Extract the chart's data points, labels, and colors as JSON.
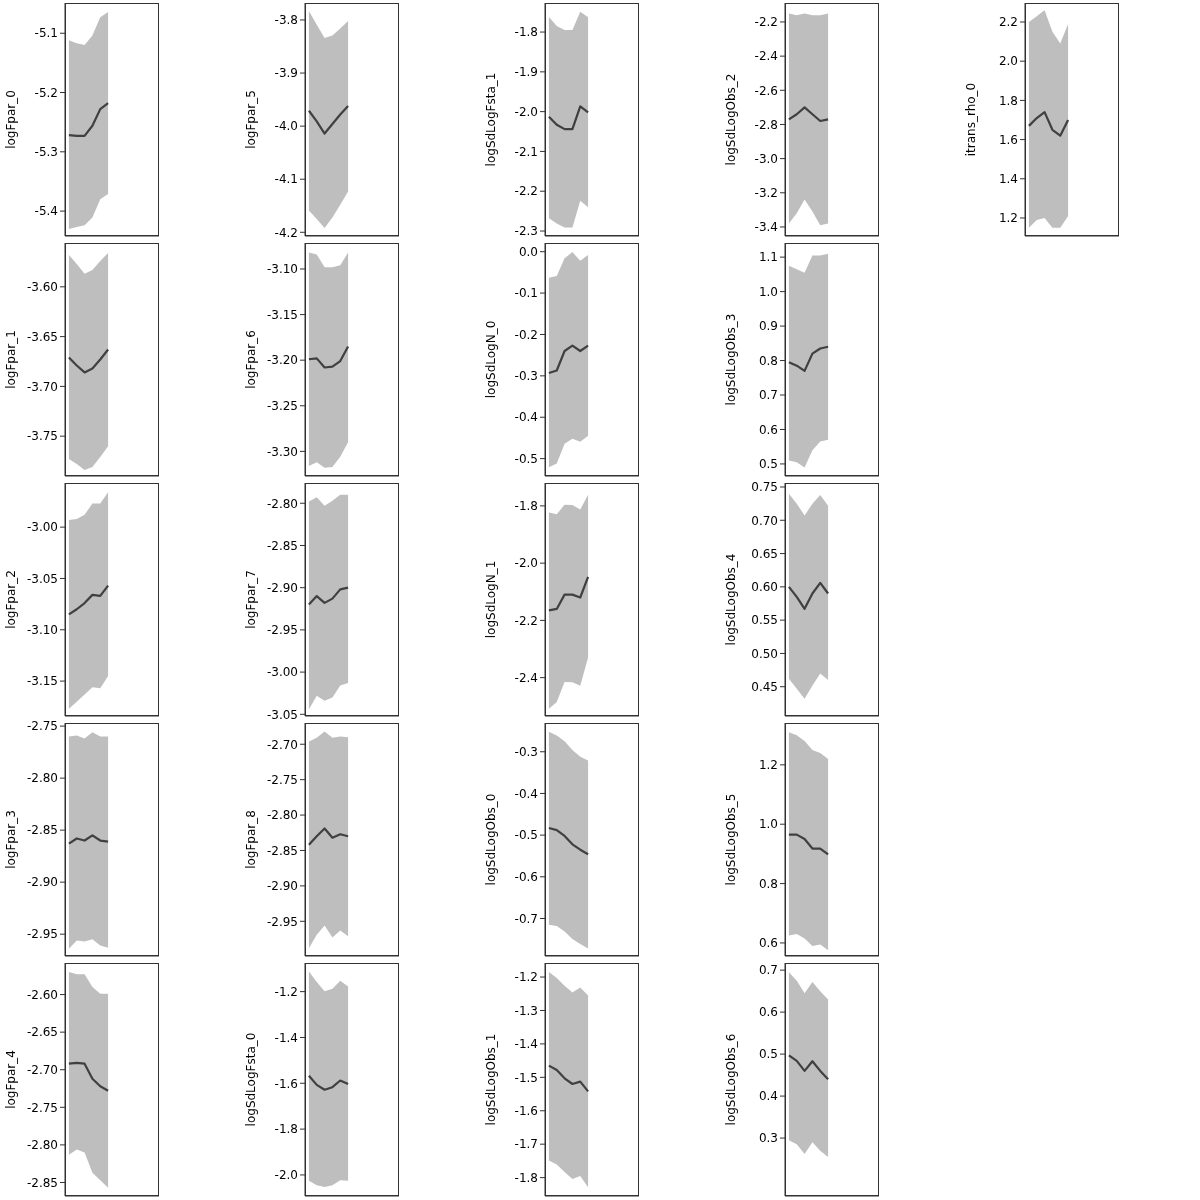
{
  "chart_data": [
    {
      "type": "line",
      "ylabel": "logFpar_0",
      "categories": [
        null,
        null,
        null,
        null,
        null,
        null,
        null,
        null,
        null,
        null,
        null,
        null
      ],
      "tick_labels": "y",
      "ylim": [
        -5.442,
        -5.049
      ],
      "yticks": [
        -5.4,
        -5.3,
        -5.2,
        -5.1
      ],
      "series": [
        {
          "color": "#404040",
          "values": [
            -5.272,
            -5.273,
            -5.273,
            -5.256,
            -5.228,
            -5.218,
            null,
            null,
            null,
            null,
            null,
            null
          ],
          "lower": [
            -5.43,
            -5.427,
            -5.424,
            -5.411,
            -5.38,
            -5.371,
            null,
            null,
            null,
            null,
            null,
            null
          ],
          "upper": [
            -5.112,
            -5.117,
            -5.12,
            -5.104,
            -5.073,
            -5.064,
            null,
            null,
            null,
            null,
            null,
            null
          ]
        }
      ]
    },
    {
      "type": "line",
      "ylabel": "logFpar_1",
      "categories": [
        null,
        null,
        null,
        null,
        null,
        null,
        null,
        null,
        null,
        null,
        null,
        null
      ],
      "tick_labels": "y",
      "ylim": [
        -3.79,
        -3.556
      ],
      "yticks": [
        -3.75,
        {
          "value": -3.7,
          "label": "-3.70"
        },
        -3.65,
        {
          "value": -3.6,
          "label": "-3.60"
        }
      ],
      "series": [
        {
          "color": "#404040",
          "values": [
            -3.671,
            -3.679,
            -3.686,
            -3.682,
            -3.673,
            -3.663,
            null,
            null,
            null,
            null,
            null,
            null
          ],
          "lower": [
            -3.773,
            -3.778,
            -3.784,
            -3.781,
            -3.771,
            -3.76,
            null,
            null,
            null,
            null,
            null,
            null
          ],
          "upper": [
            -3.568,
            -3.577,
            -3.587,
            -3.583,
            -3.574,
            -3.566,
            null,
            null,
            null,
            null,
            null,
            null
          ]
        }
      ]
    },
    {
      "type": "line",
      "ylabel": "logFpar_2",
      "categories": [
        null,
        null,
        null,
        null,
        null,
        null,
        null,
        null,
        null,
        null,
        null,
        null
      ],
      "tick_labels": "y",
      "ylim": [
        -3.184,
        -2.957
      ],
      "yticks": [
        -3.15,
        {
          "value": -3.1,
          "label": "-3.10"
        },
        -3.05,
        {
          "value": -3,
          "label": "-3.00"
        }
      ],
      "series": [
        {
          "color": "#404040",
          "values": [
            -3.085,
            -3.08,
            -3.074,
            -3.066,
            -3.067,
            -3.057,
            null,
            null,
            null,
            null,
            null,
            null
          ],
          "lower": [
            -3.177,
            -3.17,
            -3.163,
            -3.156,
            -3.157,
            -3.145,
            null,
            null,
            null,
            null,
            null,
            null
          ],
          "upper": [
            -2.993,
            -2.992,
            -2.988,
            -2.977,
            -2.977,
            -2.966,
            null,
            null,
            null,
            null,
            null,
            null
          ]
        }
      ]
    },
    {
      "type": "line",
      "ylabel": "logFpar_3",
      "categories": [
        null,
        null,
        null,
        null,
        null,
        null,
        null,
        null,
        null,
        null,
        null,
        null
      ],
      "tick_labels": "y",
      "ylim": [
        -2.971,
        -2.747
      ],
      "yticks": [
        -2.95,
        {
          "value": -2.9,
          "label": "-2.90"
        },
        -2.85,
        {
          "value": -2.8,
          "label": "-2.80"
        },
        -2.75
      ],
      "series": [
        {
          "color": "#404040",
          "values": [
            -2.863,
            -2.858,
            -2.86,
            -2.855,
            -2.86,
            -2.861,
            null,
            null,
            null,
            null,
            null,
            null
          ],
          "lower": [
            -2.964,
            -2.956,
            -2.957,
            -2.955,
            -2.961,
            -2.963,
            null,
            null,
            null,
            null,
            null,
            null
          ],
          "upper": [
            -2.76,
            -2.759,
            -2.762,
            -2.756,
            -2.76,
            -2.76,
            null,
            null,
            null,
            null,
            null,
            null
          ]
        }
      ]
    },
    {
      "type": "line",
      "ylabel": "logFpar_4",
      "categories": [
        null,
        null,
        null,
        null,
        null,
        null,
        null,
        null,
        null,
        null,
        null,
        null
      ],
      "tick_labels": "y",
      "ylim": [
        -2.868,
        -2.558
      ],
      "yticks": [
        -2.85,
        {
          "value": -2.8,
          "label": "-2.80"
        },
        -2.75,
        {
          "value": -2.7,
          "label": "-2.70"
        },
        -2.65,
        {
          "value": -2.6,
          "label": "-2.60"
        }
      ],
      "series": [
        {
          "color": "#404040",
          "values": [
            -2.692,
            -2.691,
            -2.692,
            -2.712,
            -2.722,
            -2.728,
            null,
            null,
            null,
            null,
            null,
            null
          ],
          "lower": [
            -2.813,
            -2.806,
            -2.81,
            -2.837,
            -2.847,
            -2.857,
            null,
            null,
            null,
            null,
            null,
            null
          ],
          "upper": [
            -2.57,
            -2.573,
            -2.573,
            -2.59,
            -2.599,
            -2.599,
            null,
            null,
            null,
            null,
            null,
            null
          ]
        }
      ]
    },
    {
      "type": "line",
      "ylabel": "logFpar_5",
      "categories": [
        null,
        null,
        null,
        null,
        null,
        null,
        null,
        null,
        null,
        null,
        null,
        null
      ],
      "tick_labels": "y",
      "ylim": [
        -4.207,
        -3.768
      ],
      "yticks": [
        -4.2,
        -4.1,
        {
          "value": -4,
          "label": "-4.0"
        },
        -3.9,
        -3.8
      ],
      "series": [
        {
          "color": "#404040",
          "values": [
            -3.971,
            -3.991,
            -4.014,
            -3.996,
            -3.978,
            -3.962,
            null,
            null,
            null,
            null,
            null,
            null
          ],
          "lower": [
            -4.159,
            -4.175,
            -4.192,
            -4.172,
            -4.148,
            -4.123,
            null,
            null,
            null,
            null,
            null,
            null
          ],
          "upper": [
            -3.783,
            -3.809,
            -3.834,
            -3.829,
            -3.816,
            -3.802,
            null,
            null,
            null,
            null,
            null,
            null
          ]
        }
      ]
    },
    {
      "type": "line",
      "ylabel": "logFpar_6",
      "categories": [
        null,
        null,
        null,
        null,
        null,
        null,
        null,
        null,
        null,
        null,
        null,
        null
      ],
      "tick_labels": "y",
      "ylim": [
        -3.327,
        -3.0715
      ],
      "yticks": [
        {
          "value": -3.3,
          "label": "-3.30"
        },
        -3.25,
        {
          "value": -3.2,
          "label": "-3.20"
        },
        -3.15,
        {
          "value": -3.1,
          "label": "-3.10"
        }
      ],
      "series": [
        {
          "color": "#404040",
          "values": [
            -3.199,
            -3.198,
            -3.208,
            -3.207,
            -3.201,
            -3.185,
            null,
            null,
            null,
            null,
            null,
            null
          ],
          "lower": [
            -3.316,
            -3.312,
            -3.318,
            -3.317,
            -3.306,
            -3.29,
            null,
            null,
            null,
            null,
            null,
            null
          ],
          "upper": [
            -3.082,
            -3.084,
            -3.098,
            -3.098,
            -3.096,
            -3.082,
            null,
            null,
            null,
            null,
            null,
            null
          ]
        }
      ]
    },
    {
      "type": "line",
      "ylabel": "logFpar_7",
      "categories": [
        null,
        null,
        null,
        null,
        null,
        null,
        null,
        null,
        null,
        null,
        null,
        null
      ],
      "tick_labels": "y",
      "ylim": [
        -3.052,
        -2.776
      ],
      "yticks": [
        -3.05,
        {
          "value": -3,
          "label": "-3.00"
        },
        -2.95,
        {
          "value": -2.9,
          "label": "-2.90"
        },
        -2.85,
        {
          "value": -2.8,
          "label": "-2.80"
        }
      ],
      "series": [
        {
          "color": "#404040",
          "values": [
            -2.92,
            -2.91,
            -2.918,
            -2.913,
            -2.902,
            -2.9,
            null,
            null,
            null,
            null,
            null,
            null
          ],
          "lower": [
            -3.044,
            -3.028,
            -3.034,
            -3.03,
            -3.016,
            -3.013,
            null,
            null,
            null,
            null,
            null,
            null
          ],
          "upper": [
            -2.798,
            -2.793,
            -2.803,
            -2.797,
            -2.79,
            -2.79,
            null,
            null,
            null,
            null,
            null,
            null
          ]
        }
      ]
    },
    {
      "type": "line",
      "ylabel": "logFpar_8",
      "categories": [
        null,
        null,
        null,
        null,
        null,
        null,
        null,
        null,
        null,
        null,
        null,
        null
      ],
      "tick_labels": "y",
      "ylim": [
        -2.999,
        -2.67
      ],
      "yticks": [
        -2.95,
        {
          "value": -2.9,
          "label": "-2.90"
        },
        -2.85,
        {
          "value": -2.8,
          "label": "-2.80"
        },
        -2.75,
        {
          "value": -2.7,
          "label": "-2.70"
        }
      ],
      "series": [
        {
          "color": "#404040",
          "values": [
            -2.842,
            -2.83,
            -2.819,
            -2.832,
            -2.827,
            -2.83,
            null,
            null,
            null,
            null,
            null,
            null
          ],
          "lower": [
            -2.988,
            -2.969,
            -2.956,
            -2.973,
            -2.963,
            -2.971,
            null,
            null,
            null,
            null,
            null,
            null
          ],
          "upper": [
            -2.696,
            -2.691,
            -2.682,
            -2.691,
            -2.689,
            -2.69,
            null,
            null,
            null,
            null,
            null,
            null
          ]
        }
      ]
    },
    {
      "type": "line",
      "ylabel": "logSdLogFsta_0",
      "categories": [
        null,
        null,
        null,
        null,
        null,
        null,
        null,
        null,
        null,
        null,
        null,
        null
      ],
      "tick_labels": "y",
      "ylim": [
        -2.092,
        -1.075
      ],
      "yticks": [
        {
          "value": -2,
          "label": "-2.0"
        },
        -1.8,
        -1.6,
        -1.4,
        -1.2
      ],
      "series": [
        {
          "color": "#404040",
          "values": [
            -1.567,
            -1.607,
            -1.628,
            -1.617,
            -1.588,
            -1.603,
            null,
            null,
            null,
            null,
            null,
            null
          ],
          "lower": [
            -2.025,
            -2.045,
            -2.053,
            -2.045,
            -2.023,
            -2.025,
            null,
            null,
            null,
            null,
            null,
            null
          ],
          "upper": [
            -1.112,
            -1.158,
            -1.198,
            -1.187,
            -1.153,
            -1.178,
            null,
            null,
            null,
            null,
            null,
            null
          ]
        }
      ]
    },
    {
      "type": "line",
      "ylabel": "logSdLogFsta_1",
      "categories": [
        null,
        null,
        null,
        null,
        null,
        null,
        null,
        null,
        null,
        null,
        null,
        null
      ],
      "tick_labels": "y",
      "ylim": [
        -2.3125,
        -1.727
      ],
      "yticks": [
        -2.3,
        -2.2,
        -2.1,
        {
          "value": -2,
          "label": "-2.0"
        },
        -1.9,
        -1.8
      ],
      "series": [
        {
          "color": "#404040",
          "values": [
            -2.013,
            -2.033,
            -2.044,
            -2.044,
            -1.987,
            -2.002,
            null,
            null,
            null,
            null,
            null,
            null
          ],
          "lower": [
            -2.268,
            -2.281,
            -2.291,
            -2.291,
            -2.224,
            -2.24,
            null,
            null,
            null,
            null,
            null,
            null
          ],
          "upper": [
            -1.762,
            -1.785,
            -1.795,
            -1.795,
            -1.749,
            -1.763,
            null,
            null,
            null,
            null,
            null,
            null
          ]
        }
      ]
    },
    {
      "type": "line",
      "ylabel": "logSdLogN_0",
      "categories": [
        null,
        null,
        null,
        null,
        null,
        null,
        null,
        null,
        null,
        null,
        null,
        null
      ],
      "tick_labels": "y",
      "ylim": [
        -0.542,
        0.021
      ],
      "yticks": [
        -0.5,
        -0.4,
        -0.3,
        -0.2,
        -0.1,
        {
          "value": 0,
          "label": "0.0"
        }
      ],
      "series": [
        {
          "color": "#404040",
          "values": [
            -0.293,
            -0.287,
            -0.24,
            -0.227,
            -0.24,
            -0.227,
            null,
            null,
            null,
            null,
            null,
            null
          ],
          "lower": [
            -0.521,
            -0.512,
            -0.464,
            -0.452,
            -0.459,
            -0.445,
            null,
            null,
            null,
            null,
            null,
            null
          ],
          "upper": [
            -0.063,
            -0.059,
            -0.016,
            -0.001,
            -0.022,
            -0.008,
            null,
            null,
            null,
            null,
            null,
            null
          ]
        }
      ]
    },
    {
      "type": "line",
      "ylabel": "logSdLogN_1",
      "categories": [
        null,
        null,
        null,
        null,
        null,
        null,
        null,
        null,
        null,
        null,
        null,
        null
      ],
      "tick_labels": "y",
      "ylim": [
        -2.534,
        -1.72
      ],
      "yticks": [
        -2.4,
        -2.2,
        {
          "value": -2,
          "label": "-2.0"
        },
        -1.8
      ],
      "series": [
        {
          "color": "#404040",
          "values": [
            -2.165,
            -2.16,
            -2.11,
            -2.11,
            -2.12,
            -2.048,
            null,
            null,
            null,
            null,
            null,
            null
          ],
          "lower": [
            -2.509,
            -2.485,
            -2.415,
            -2.416,
            -2.428,
            -2.33,
            null,
            null,
            null,
            null,
            null,
            null
          ],
          "upper": [
            -1.823,
            -1.829,
            -1.796,
            -1.797,
            -1.813,
            -1.761,
            null,
            null,
            null,
            null,
            null,
            null
          ]
        }
      ]
    },
    {
      "type": "line",
      "ylabel": "logSdLogObs_0",
      "categories": [
        null,
        null,
        null,
        null,
        null,
        null,
        null,
        null,
        null,
        null,
        null,
        null
      ],
      "tick_labels": "y",
      "ylim": [
        -0.79,
        -0.231
      ],
      "yticks": [
        -0.7,
        -0.6,
        -0.5,
        -0.4,
        -0.3
      ],
      "series": [
        {
          "color": "#404040",
          "values": [
            -0.483,
            -0.488,
            -0.502,
            -0.522,
            -0.535,
            -0.546,
            null,
            null,
            null,
            null,
            null,
            null
          ],
          "lower": [
            -0.715,
            -0.718,
            -0.731,
            -0.749,
            -0.761,
            -0.772,
            null,
            null,
            null,
            null,
            null,
            null
          ],
          "upper": [
            -0.252,
            -0.261,
            -0.275,
            -0.296,
            -0.312,
            -0.321,
            null,
            null,
            null,
            null,
            null,
            null
          ]
        }
      ]
    },
    {
      "type": "line",
      "ylabel": "logSdLogObs_1",
      "categories": [
        null,
        null,
        null,
        null,
        null,
        null,
        null,
        null,
        null,
        null,
        null,
        null
      ],
      "tick_labels": "y",
      "ylim": [
        -1.855,
        -1.158
      ],
      "yticks": [
        -1.8,
        -1.7,
        -1.6,
        -1.5,
        -1.4,
        -1.3,
        -1.2
      ],
      "series": [
        {
          "color": "#404040",
          "values": [
            -1.465,
            -1.478,
            -1.503,
            -1.52,
            -1.513,
            -1.542,
            null,
            null,
            null,
            null,
            null,
            null
          ],
          "lower": [
            -1.749,
            -1.761,
            -1.783,
            -1.804,
            -1.795,
            -1.829,
            null,
            null,
            null,
            null,
            null,
            null
          ],
          "upper": [
            -1.185,
            -1.203,
            -1.226,
            -1.246,
            -1.231,
            -1.255,
            null,
            null,
            null,
            null,
            null,
            null
          ]
        }
      ]
    },
    {
      "type": "line",
      "ylabel": "logSdLogObs_2",
      "categories": [
        null,
        null,
        null,
        null,
        null,
        null,
        null,
        null,
        null,
        null,
        null,
        null
      ],
      "tick_labels": "y",
      "ylim": [
        -3.453,
        -2.089
      ],
      "yticks": [
        -3.4,
        -3.2,
        {
          "value": -3,
          "label": "-3.0"
        },
        -2.8,
        -2.6,
        -2.4,
        -2.2
      ],
      "series": [
        {
          "color": "#404040",
          "values": [
            -2.77,
            -2.74,
            -2.7,
            -2.74,
            -2.78,
            -2.77,
            null,
            null,
            null,
            null,
            null,
            null
          ],
          "lower": [
            -3.38,
            -3.32,
            -3.24,
            -3.31,
            -3.39,
            -3.38,
            null,
            null,
            null,
            null,
            null,
            null
          ],
          "upper": [
            -2.15,
            -2.16,
            -2.15,
            -2.16,
            -2.16,
            -2.15,
            null,
            null,
            null,
            null,
            null,
            null
          ]
        }
      ]
    },
    {
      "type": "line",
      "ylabel": "logSdLogObs_3",
      "categories": [
        null,
        null,
        null,
        null,
        null,
        null,
        null,
        null,
        null,
        null,
        null,
        null
      ],
      "tick_labels": "y",
      "ylim": [
        0.465,
        1.141
      ],
      "yticks": [
        0.5,
        0.6,
        0.7,
        0.8,
        0.9,
        {
          "value": 1,
          "label": "1.0"
        },
        1.1
      ],
      "series": [
        {
          "color": "#404040",
          "values": [
            0.795,
            0.785,
            0.77,
            0.82,
            0.835,
            0.84,
            null,
            null,
            null,
            null,
            null,
            null
          ],
          "lower": [
            0.51,
            0.505,
            0.49,
            0.54,
            0.565,
            0.57,
            null,
            null,
            null,
            null,
            null,
            null
          ],
          "upper": [
            1.075,
            1.065,
            1.055,
            1.105,
            1.105,
            1.11,
            null,
            null,
            null,
            null,
            null,
            null
          ]
        }
      ]
    },
    {
      "type": "line",
      "ylabel": "logSdLogObs_4",
      "categories": [
        null,
        null,
        null,
        null,
        null,
        null,
        null,
        null,
        null,
        null,
        null,
        null
      ],
      "tick_labels": "y",
      "ylim": [
        0.406,
        0.756
      ],
      "yticks": [
        0.45,
        {
          "value": 0.5,
          "label": "0.50"
        },
        0.55,
        {
          "value": 0.6,
          "label": "0.60"
        },
        0.65,
        {
          "value": 0.7,
          "label": "0.70"
        },
        0.75
      ],
      "series": [
        {
          "color": "#404040",
          "values": [
            0.6,
            0.585,
            0.567,
            0.59,
            0.606,
            0.59,
            null,
            null,
            null,
            null,
            null,
            null
          ],
          "lower": [
            0.462,
            0.447,
            0.432,
            0.452,
            0.47,
            0.46,
            null,
            null,
            null,
            null,
            null,
            null
          ],
          "upper": [
            0.74,
            0.725,
            0.707,
            0.725,
            0.738,
            0.722,
            null,
            null,
            null,
            null,
            null,
            null
          ]
        }
      ]
    },
    {
      "type": "line",
      "ylabel": "logSdLogObs_5",
      "categories": [
        null,
        null,
        null,
        null,
        null,
        null,
        null,
        null,
        null,
        null,
        null,
        null
      ],
      "tick_labels": "y",
      "ylim": [
        0.556,
        1.341
      ],
      "yticks": [
        0.6,
        0.8,
        {
          "value": 1,
          "label": "1.0"
        },
        1.2
      ],
      "series": [
        {
          "color": "#404040",
          "values": [
            0.965,
            0.965,
            0.95,
            0.918,
            0.918,
            0.898,
            null,
            null,
            null,
            null,
            null,
            null
          ],
          "lower": [
            0.625,
            0.63,
            0.615,
            0.59,
            0.595,
            0.575,
            null,
            null,
            null,
            null,
            null,
            null
          ],
          "upper": [
            1.31,
            1.3,
            1.28,
            1.25,
            1.24,
            1.22,
            null,
            null,
            null,
            null,
            null,
            null
          ]
        }
      ]
    },
    {
      "type": "line",
      "ylabel": "logSdLogObs_6",
      "categories": [
        null,
        null,
        null,
        null,
        null,
        null,
        null,
        null,
        null,
        null,
        null,
        null
      ],
      "tick_labels": "y",
      "ylim": [
        0.162,
        0.717
      ],
      "yticks": [
        0.3,
        0.4,
        0.5,
        0.6,
        0.7
      ],
      "series": [
        {
          "color": "#404040",
          "values": [
            0.497,
            0.484,
            0.46,
            0.483,
            0.46,
            0.44,
            null,
            null,
            null,
            null,
            null,
            null
          ],
          "lower": [
            0.295,
            0.285,
            0.262,
            0.29,
            0.27,
            0.255,
            null,
            null,
            null,
            null,
            null,
            null
          ],
          "upper": [
            0.695,
            0.675,
            0.645,
            0.672,
            0.65,
            0.63,
            null,
            null,
            null,
            null,
            null,
            null
          ]
        }
      ]
    },
    {
      "type": "line",
      "ylabel": "itrans_rho_0",
      "categories": [
        null,
        null,
        null,
        null,
        null,
        null,
        null,
        null,
        null,
        null,
        null,
        null
      ],
      "tick_labels": "y",
      "ylim": [
        1.108,
        2.297
      ],
      "yticks": [
        1.2,
        1.4,
        1.6,
        1.8,
        {
          "value": 2,
          "label": "2.0"
        },
        2.2
      ],
      "series": [
        {
          "color": "#404040",
          "values": [
            1.67,
            1.71,
            1.74,
            1.65,
            1.62,
            1.7,
            null,
            null,
            null,
            null,
            null,
            null
          ],
          "lower": [
            1.15,
            1.19,
            1.2,
            1.15,
            1.15,
            1.21,
            null,
            null,
            null,
            null,
            null,
            null
          ],
          "upper": [
            2.2,
            2.23,
            2.26,
            2.15,
            2.09,
            2.19,
            null,
            null,
            null,
            null,
            null,
            null
          ]
        }
      ]
    }
  ]
}
